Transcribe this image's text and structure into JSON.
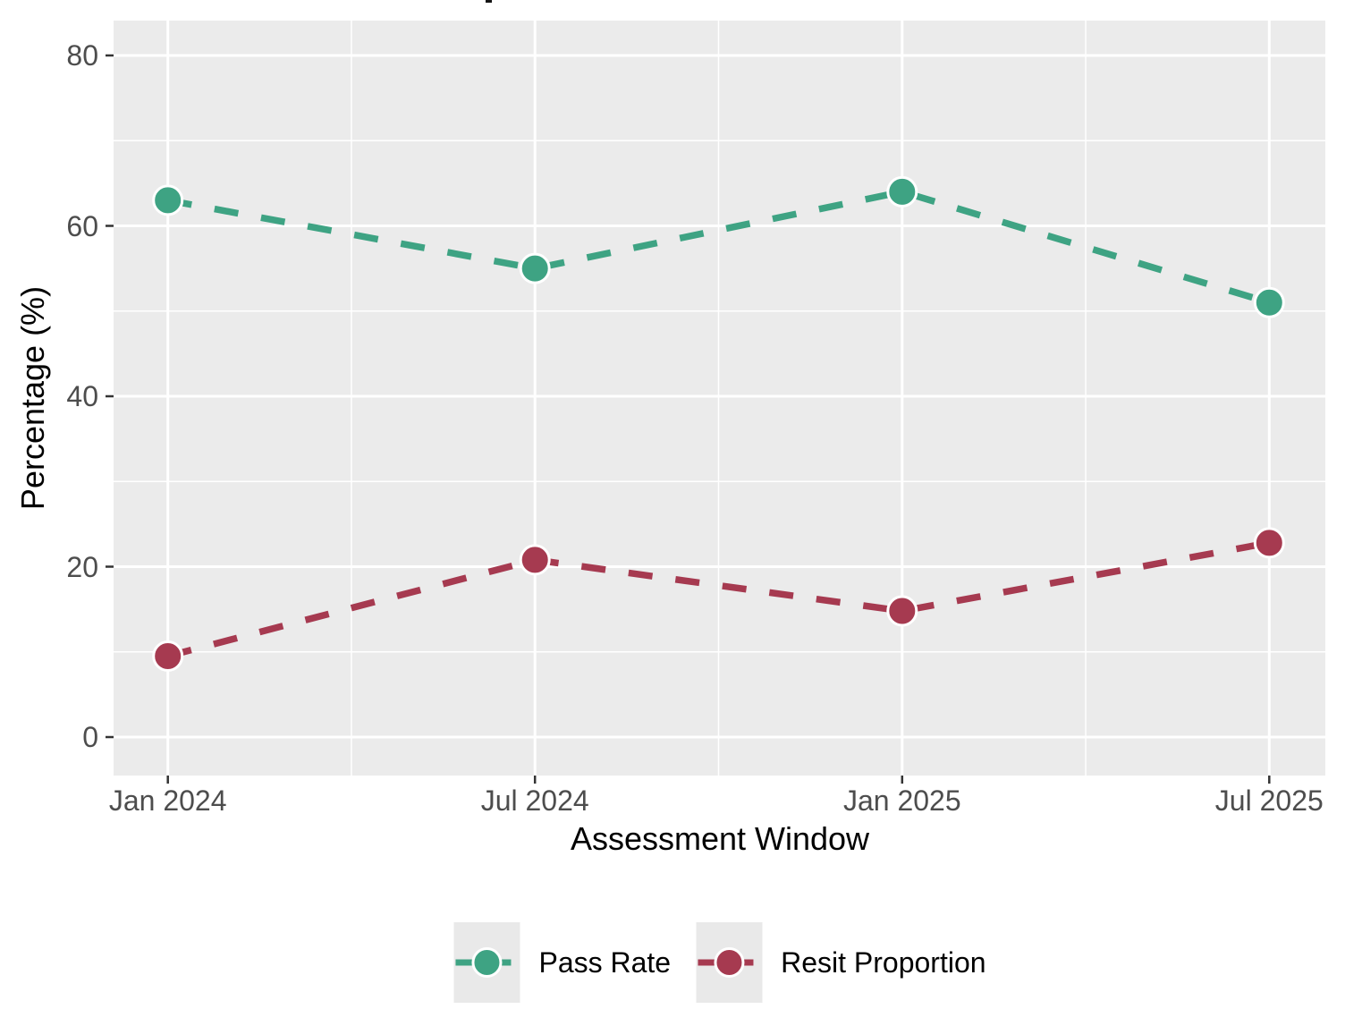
{
  "chart_data": {
    "type": "line",
    "title": "",
    "xlabel": "Assessment Window",
    "ylabel": "Percentage (%)",
    "categories": [
      "Jan 2024",
      "Jul 2024",
      "Jan 2025",
      "Jul 2025"
    ],
    "series": [
      {
        "name": "Pass Rate",
        "color": "#3EA383",
        "values": [
          63,
          55,
          64,
          51
        ]
      },
      {
        "name": "Resit Proportion",
        "color": "#A63A50",
        "values": [
          9.5,
          20.8,
          14.8,
          22.8
        ]
      }
    ],
    "ylim": [
      0,
      80
    ],
    "yticks": [
      0,
      20,
      40,
      60,
      80
    ],
    "yticks_minor": [
      10,
      30,
      50,
      70
    ],
    "line_style": "dashed",
    "marker": "circle",
    "grid": "major-and-minor-white-on-gray",
    "legend_position": "bottom",
    "colors": {
      "panel_background": "#EBEBEB",
      "gridline": "#FFFFFF",
      "tick_mark": "#333333",
      "tick_text": "#4D4D4D",
      "axis_title_text": "#000000",
      "legend_key_background": "#E9E9E9",
      "page_background": "#FFFFFF"
    }
  }
}
